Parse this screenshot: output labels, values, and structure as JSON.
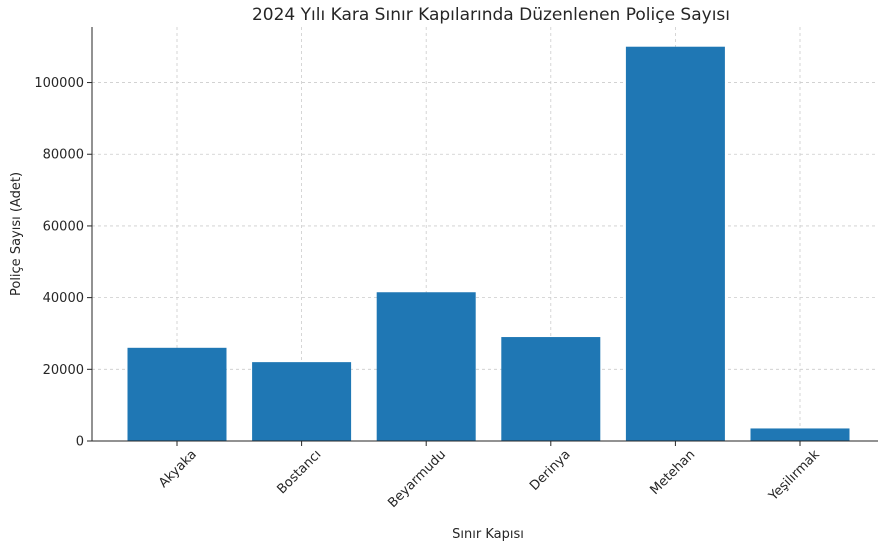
{
  "chart_data": {
    "type": "bar",
    "title": "2024 Yılı Kara Sınır Kapılarında Düzenlenen Poliçe Sayısı",
    "xlabel": "Sınır Kapısı",
    "ylabel": "Poliçe Sayısı (Adet)",
    "categories": [
      "Akyaka",
      "Bostancı",
      "Beyarmudu",
      "Derinya",
      "Metehan",
      "Yeşilırmak"
    ],
    "values": [
      26000,
      22000,
      41500,
      29000,
      110000,
      3500
    ],
    "ylim": [
      0,
      115500
    ],
    "yticks": [
      0,
      20000,
      40000,
      60000,
      80000,
      100000
    ],
    "grid": true,
    "bar_color": "#1f77b4"
  }
}
